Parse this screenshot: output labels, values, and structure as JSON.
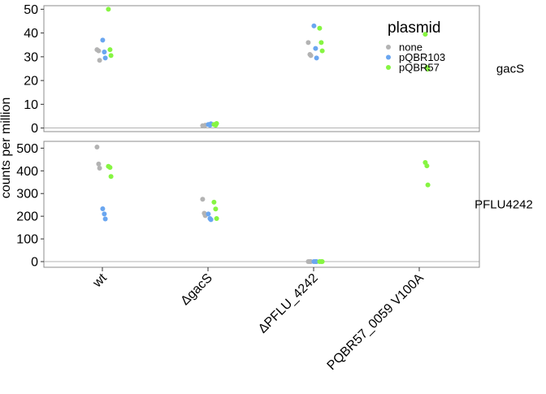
{
  "chart_data": {
    "type": "scatter",
    "ylabel": "counts per million",
    "categories": [
      "wt",
      "ΔgacS",
      "ΔPFLU_4242",
      "PQBR57_0059 V100A"
    ],
    "legend": {
      "title": "plasmid",
      "placement": "top-right",
      "entries": [
        {
          "name": "none",
          "color": "#b3b3b3"
        },
        {
          "name": "pQBR103",
          "color": "#6aa6f0"
        },
        {
          "name": "pQBR57",
          "color": "#86f542"
        }
      ]
    },
    "panels": [
      {
        "label": "gacS",
        "ylim": [
          -1.5,
          51.5
        ],
        "yticks": [
          0,
          10,
          20,
          30,
          40,
          50
        ],
        "series": [
          {
            "name": "none",
            "points": [
              [
                0,
                33
              ],
              [
                0,
                32.5
              ],
              [
                0,
                28.5
              ],
              [
                1,
                1
              ],
              [
                1,
                0.8
              ],
              [
                1,
                1.2
              ],
              [
                2,
                36
              ],
              [
                2,
                31
              ],
              [
                2,
                30.5
              ]
            ]
          },
          {
            "name": "pQBR103",
            "points": [
              [
                0,
                37
              ],
              [
                0,
                32
              ],
              [
                0,
                29.5
              ],
              [
                1,
                1.5
              ],
              [
                1,
                1.2
              ],
              [
                1,
                1.8
              ],
              [
                2,
                43
              ],
              [
                2,
                33.5
              ],
              [
                2,
                29.5
              ]
            ]
          },
          {
            "name": "pQBR57",
            "points": [
              [
                0,
                50
              ],
              [
                0,
                33
              ],
              [
                0,
                30.5
              ],
              [
                1,
                1.5
              ],
              [
                1,
                1.2
              ],
              [
                1,
                1.9
              ],
              [
                2,
                42
              ],
              [
                2,
                36
              ],
              [
                2,
                32.5
              ],
              [
                3,
                39.5
              ],
              [
                3,
                25.5
              ],
              [
                3,
                24.8
              ]
            ]
          }
        ]
      },
      {
        "label": "PFLU4242",
        "ylim": [
          -25,
          530
        ],
        "yticks": [
          0,
          100,
          200,
          300,
          400,
          500
        ],
        "series": [
          {
            "name": "none",
            "points": [
              [
                0,
                505
              ],
              [
                0,
                430
              ],
              [
                0,
                412
              ],
              [
                1,
                275
              ],
              [
                1,
                213
              ],
              [
                1,
                203
              ],
              [
                2,
                0
              ],
              [
                2,
                0
              ],
              [
                2,
                0
              ]
            ]
          },
          {
            "name": "pQBR103",
            "points": [
              [
                0,
                233
              ],
              [
                0,
                210
              ],
              [
                0,
                188
              ],
              [
                1,
                210
              ],
              [
                1,
                190
              ],
              [
                1,
                185
              ],
              [
                2,
                0
              ],
              [
                2,
                0
              ],
              [
                2,
                0
              ]
            ]
          },
          {
            "name": "pQBR57",
            "points": [
              [
                0,
                420
              ],
              [
                0,
                415
              ],
              [
                0,
                375
              ],
              [
                1,
                262
              ],
              [
                1,
                232
              ],
              [
                1,
                190
              ],
              [
                2,
                0
              ],
              [
                2,
                0
              ],
              [
                2,
                0
              ],
              [
                3,
                437
              ],
              [
                3,
                422
              ],
              [
                3,
                338
              ]
            ]
          }
        ]
      }
    ]
  }
}
